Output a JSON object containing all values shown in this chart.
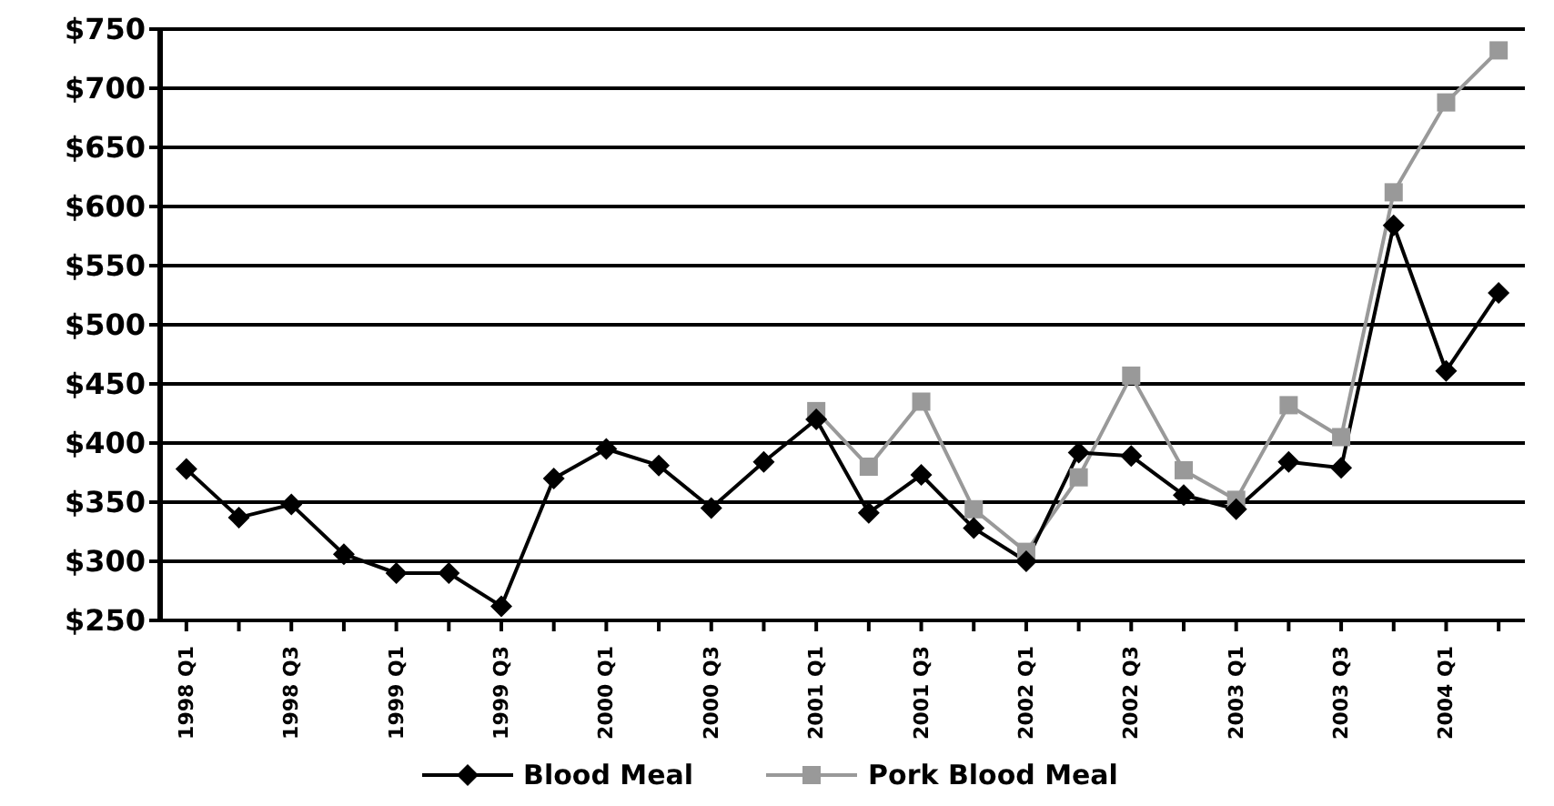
{
  "chart_data": {
    "type": "line",
    "categories": [
      "1998 Q1",
      null,
      "1998 Q3",
      null,
      "1999 Q1",
      null,
      "1999 Q3",
      null,
      "2000 Q1",
      null,
      "2000 Q3",
      null,
      "2001 Q1",
      null,
      "2001 Q3",
      null,
      "2002 Q1",
      null,
      "2002 Q3",
      null,
      "2003 Q1",
      null,
      "2003 Q3",
      null,
      "2004 Q1",
      null
    ],
    "series": [
      {
        "name": "Blood Meal",
        "color": "#000000",
        "marker": "diamond",
        "values": [
          378,
          337,
          348,
          306,
          290,
          290,
          262,
          370,
          395,
          381,
          345,
          384,
          420,
          341,
          373,
          328,
          300,
          392,
          389,
          356,
          344,
          384,
          379,
          584,
          461,
          527
        ]
      },
      {
        "name": "Pork Blood Meal",
        "color": "#999999",
        "marker": "square",
        "values": [
          null,
          null,
          null,
          null,
          null,
          null,
          null,
          null,
          null,
          null,
          null,
          null,
          427,
          380,
          435,
          344,
          308,
          371,
          457,
          377,
          352,
          432,
          405,
          612,
          688,
          732
        ]
      }
    ],
    "ylim": [
      250,
      750
    ],
    "yticks": [
      {
        "value": 250,
        "label": "$250"
      },
      {
        "value": 300,
        "label": "$300"
      },
      {
        "value": 350,
        "label": "$350"
      },
      {
        "value": 400,
        "label": "$400"
      },
      {
        "value": 450,
        "label": "$450"
      },
      {
        "value": 500,
        "label": "$500"
      },
      {
        "value": 550,
        "label": "$550"
      },
      {
        "value": 600,
        "label": "$600"
      },
      {
        "value": 650,
        "label": "$650"
      },
      {
        "value": 700,
        "label": "$700"
      },
      {
        "value": 750,
        "label": "$750"
      }
    ],
    "grid": "y",
    "legend": "bottom",
    "line_style": "solid"
  }
}
